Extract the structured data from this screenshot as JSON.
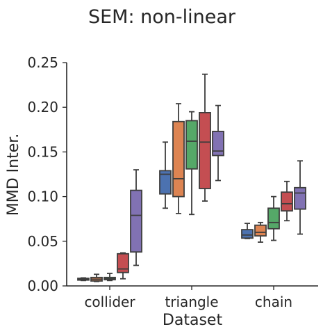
{
  "chart_data": {
    "type": "box",
    "title": "SEM: non-linear",
    "xlabel": "Dataset",
    "ylabel": "MMD Inter.",
    "ylim": [
      0.0,
      0.25
    ],
    "yticks": [
      "0.00",
      "0.05",
      "0.10",
      "0.15",
      "0.20",
      "0.25"
    ],
    "grid": false,
    "legend": "none",
    "categories": [
      "collider",
      "triangle",
      "chain"
    ],
    "series": [
      {
        "color": "#4c72b0",
        "stats": [
          {
            "whislo": 0.006,
            "q1": 0.0065,
            "med": 0.0075,
            "q3": 0.0085,
            "whishi": 0.009
          },
          {
            "whislo": 0.087,
            "q1": 0.103,
            "med": 0.125,
            "q3": 0.129,
            "whishi": 0.161
          },
          {
            "whislo": 0.053,
            "q1": 0.0535,
            "med": 0.057,
            "q3": 0.063,
            "whishi": 0.07
          }
        ]
      },
      {
        "color": "#dd8452",
        "stats": [
          {
            "whislo": 0.005,
            "q1": 0.0055,
            "med": 0.0075,
            "q3": 0.0095,
            "whishi": 0.013
          },
          {
            "whislo": 0.081,
            "q1": 0.1,
            "med": 0.12,
            "q3": 0.184,
            "whishi": 0.204
          },
          {
            "whislo": 0.049,
            "q1": 0.056,
            "med": 0.06,
            "q3": 0.068,
            "whishi": 0.071
          }
        ]
      },
      {
        "color": "#55a868",
        "stats": [
          {
            "whislo": 0.006,
            "q1": 0.007,
            "med": 0.008,
            "q3": 0.0095,
            "whishi": 0.014
          },
          {
            "whislo": 0.08,
            "q1": 0.131,
            "med": 0.162,
            "q3": 0.185,
            "whishi": 0.195
          },
          {
            "whislo": 0.051,
            "q1": 0.064,
            "med": 0.071,
            "q3": 0.087,
            "whishi": 0.1
          }
        ]
      },
      {
        "color": "#c44e52",
        "stats": [
          {
            "whislo": 0.008,
            "q1": 0.015,
            "med": 0.019,
            "q3": 0.036,
            "whishi": 0.037
          },
          {
            "whislo": 0.095,
            "q1": 0.109,
            "med": 0.161,
            "q3": 0.194,
            "whishi": 0.237
          },
          {
            "whislo": 0.073,
            "q1": 0.084,
            "med": 0.092,
            "q3": 0.105,
            "whishi": 0.117
          }
        ]
      },
      {
        "color": "#8172b3",
        "stats": [
          {
            "whislo": 0.023,
            "q1": 0.038,
            "med": 0.079,
            "q3": 0.107,
            "whishi": 0.13
          },
          {
            "whislo": 0.118,
            "q1": 0.146,
            "med": 0.151,
            "q3": 0.173,
            "whishi": 0.202
          },
          {
            "whislo": 0.058,
            "q1": 0.086,
            "med": 0.104,
            "q3": 0.11,
            "whishi": 0.14
          }
        ]
      }
    ]
  }
}
